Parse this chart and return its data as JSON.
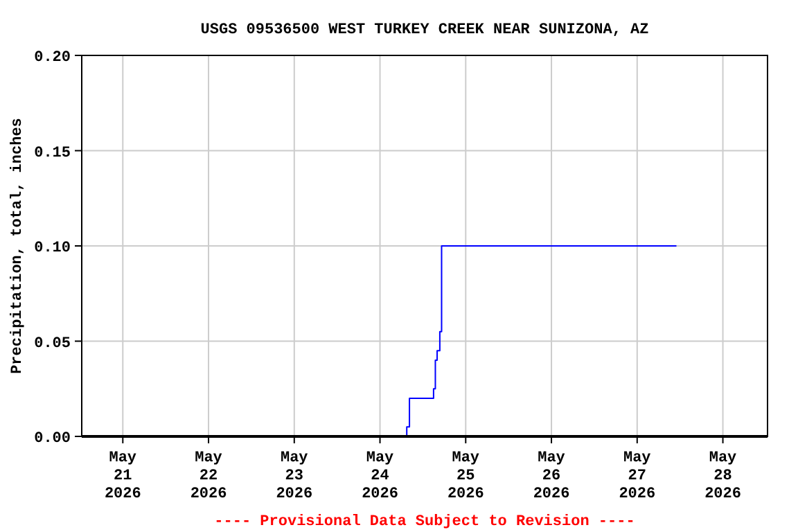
{
  "chart_data": {
    "type": "step",
    "title": "USGS 09536500 WEST TURKEY CREEK NEAR SUNIZONA, AZ",
    "ylabel": "Precipitation, total, inches",
    "x": [
      "2026-05-20T12:30",
      "2026-05-24T07:30",
      "2026-05-24T08:15",
      "2026-05-24T15:00",
      "2026-05-24T15:30",
      "2026-05-24T16:00",
      "2026-05-24T16:45",
      "2026-05-24T17:15",
      "2026-05-27T11:00"
    ],
    "series": [
      {
        "color": "#0000ff",
        "values": [
          0,
          0.005,
          0.02,
          0.025,
          0.04,
          0.045,
          0.055,
          0.1,
          0.1
        ]
      }
    ],
    "xlim": [
      "2026-05-20T12:30",
      "2026-05-28T12:30"
    ],
    "xticks": [
      {
        "value": "2026-05-21",
        "label": "May\n21\n2026"
      },
      {
        "value": "2026-05-22",
        "label": "May\n22\n2026"
      },
      {
        "value": "2026-05-23",
        "label": "May\n23\n2026"
      },
      {
        "value": "2026-05-24",
        "label": "May\n24\n2026"
      },
      {
        "value": "2026-05-25",
        "label": "May\n25\n2026"
      },
      {
        "value": "2026-05-26",
        "label": "May\n26\n2026"
      },
      {
        "value": "2026-05-27",
        "label": "May\n27\n2026"
      },
      {
        "value": "2026-05-28",
        "label": "May\n28\n2026"
      }
    ],
    "ylim": [
      0,
      0.2
    ],
    "yticks": [
      {
        "value": 0,
        "label": "0.00"
      },
      {
        "value": 0.05,
        "label": "0.05"
      },
      {
        "value": 0.1,
        "label": "0.10"
      },
      {
        "value": 0.15,
        "label": "0.15"
      },
      {
        "value": 0.2,
        "label": "0.20"
      }
    ],
    "grid": true,
    "annotations": [
      "---- Provisional Data Subject to Revision ----"
    ]
  }
}
